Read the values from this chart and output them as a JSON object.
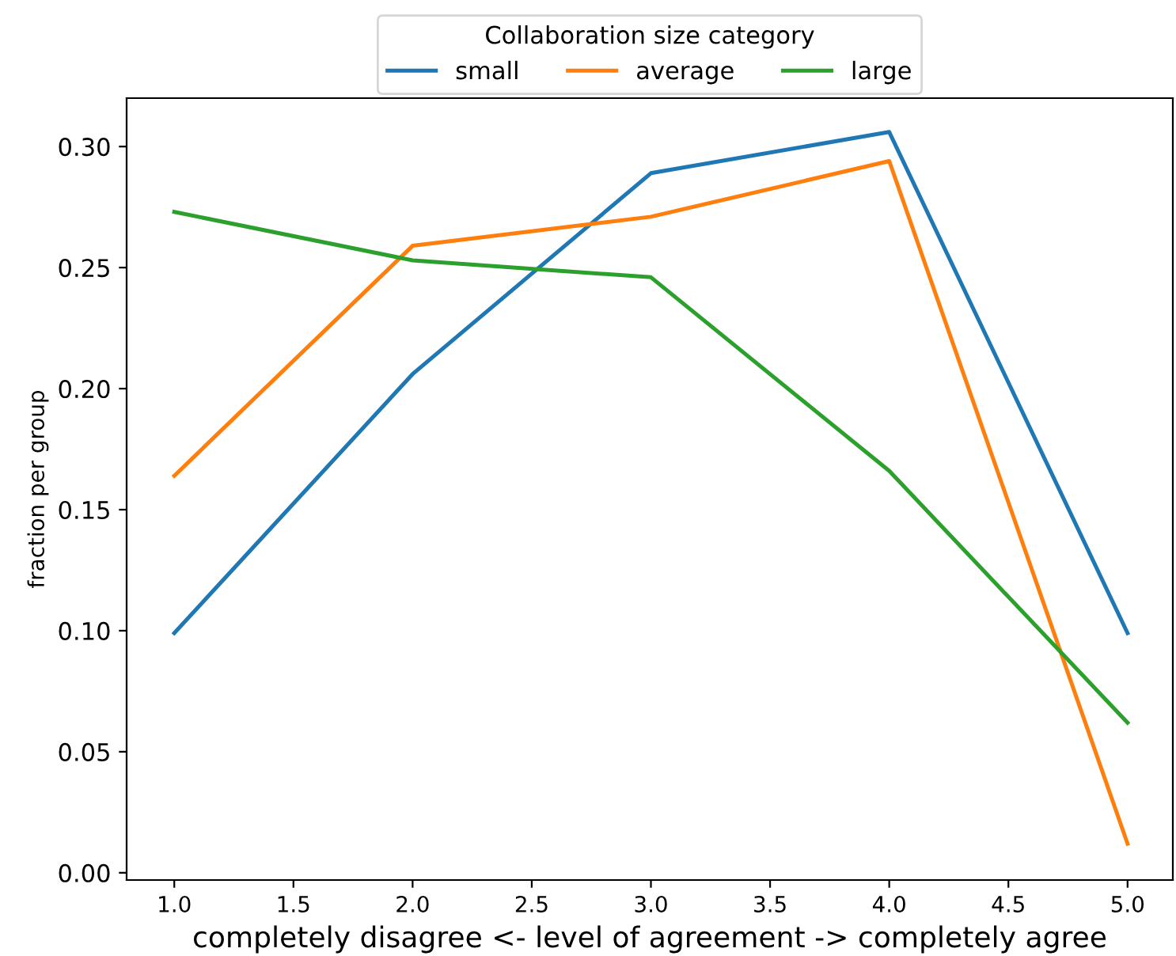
{
  "chart_data": {
    "type": "line",
    "xlabel": "completely disagree <- level of agreement -> completely agree",
    "ylabel": "fraction per group",
    "legend_title": "Collaboration size category",
    "legend": "top",
    "x": [
      1.0,
      2.0,
      3.0,
      4.0,
      5.0
    ],
    "series": [
      {
        "name": "small",
        "color": "#1f77b4",
        "values": [
          0.099,
          0.206,
          0.289,
          0.306,
          0.099
        ]
      },
      {
        "name": "average",
        "color": "#ff7f0e",
        "values": [
          0.164,
          0.259,
          0.271,
          0.294,
          0.012
        ]
      },
      {
        "name": "large",
        "color": "#2ca02c",
        "values": [
          0.273,
          0.253,
          0.246,
          0.166,
          0.062
        ]
      }
    ],
    "xlim": [
      0.8,
      5.19
    ],
    "ylim": [
      -0.003,
      0.32
    ],
    "xticks": [
      {
        "value": 1.0,
        "label": "1.0"
      },
      {
        "value": 1.5,
        "label": "1.5"
      },
      {
        "value": 2.0,
        "label": "2.0"
      },
      {
        "value": 2.5,
        "label": "2.5"
      },
      {
        "value": 3.0,
        "label": "3.0"
      },
      {
        "value": 3.5,
        "label": "3.5"
      },
      {
        "value": 4.0,
        "label": "4.0"
      },
      {
        "value": 4.5,
        "label": "4.5"
      },
      {
        "value": 5.0,
        "label": "5.0"
      }
    ],
    "yticks": [
      {
        "value": 0,
        "label": "0.00"
      },
      {
        "value": 0.05,
        "label": "0.05"
      },
      {
        "value": 0.1,
        "label": "0.10"
      },
      {
        "value": 0.15,
        "label": "0.15"
      },
      {
        "value": 0.2,
        "label": "0.20"
      },
      {
        "value": 0.25,
        "label": "0.25"
      },
      {
        "value": 0.3,
        "label": "0.30"
      }
    ]
  }
}
